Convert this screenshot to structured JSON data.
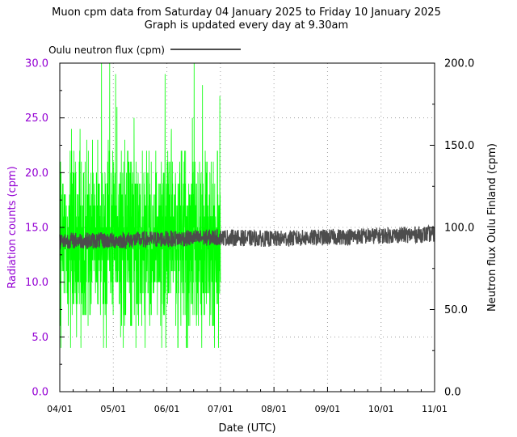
{
  "chart_data": {
    "type": "line",
    "title": "Muon cpm data from Saturday 04 January 2025 to Friday 10 January 2025",
    "subtitle": "Graph is updated every day at 9.30am",
    "xlabel": "Date (UTC)",
    "ylabel_left": "Radiation counts (cpm)",
    "ylabel_right": "Neutron flux Oulu Finland (cpm)",
    "x_ticks": [
      "04/01",
      "05/01",
      "06/01",
      "07/01",
      "08/01",
      "09/01",
      "10/01",
      "11/01"
    ],
    "y_left_ticks": [
      "0.0",
      "5.0",
      "10.0",
      "15.0",
      "20.0",
      "25.0",
      "30.0"
    ],
    "y_right_ticks": [
      "0.0",
      "50.0",
      "100.0",
      "150.0",
      "200.0"
    ],
    "ylim_left": [
      0,
      30
    ],
    "ylim_right": [
      0,
      200
    ],
    "xlim": [
      "2025-01-04",
      "2025-01-11"
    ],
    "grid": true,
    "legend": {
      "position": "top-left"
    },
    "colors": {
      "muon": "#00ff00",
      "neutron": "#4d4d4d",
      "left_axis": "#9400d3",
      "grid": "#a0a0a0"
    },
    "series": [
      {
        "name": "Oulu neutron flux (cpm)",
        "axis": "right",
        "x": [
          "2025-01-04",
          "2025-01-05",
          "2025-01-06",
          "2025-01-07",
          "2025-01-08",
          "2025-01-09",
          "2025-01-10",
          "2025-01-11"
        ],
        "values": [
          92,
          92,
          93,
          94,
          93,
          94,
          95,
          96
        ],
        "spread": 5
      },
      {
        "axis": "left",
        "x": [
          "2025-01-04",
          "2025-01-07"
        ],
        "values": [
          14,
          14
        ],
        "spread_min": 4,
        "spread_max": 30
      }
    ]
  }
}
